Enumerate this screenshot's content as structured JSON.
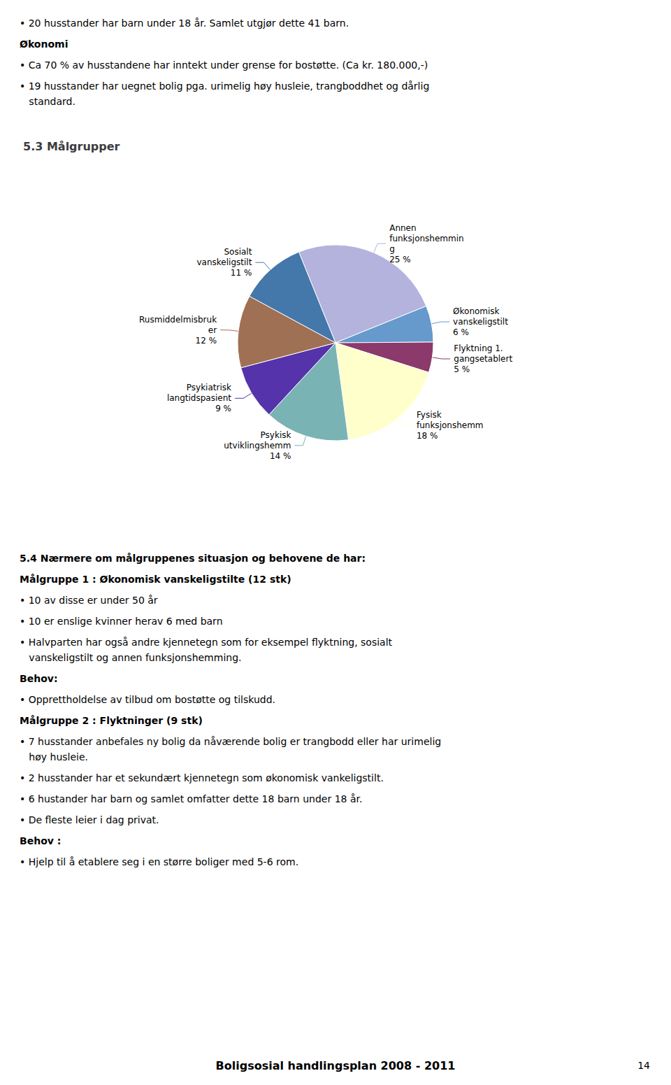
{
  "chart_data": {
    "type": "pie",
    "title": "5.3 Målgrupper",
    "categories": [
      "Annen\nfunksjonshemmin\ng",
      "Økonomisk\nvanskeligstilt",
      "Flyktning 1.\ngangsetablert",
      "Fysisk\nfunksjonshemm",
      "Psykisk\nutviklingshemm",
      "Psykiatrisk\nlangtidspasient",
      "Rusmiddelmisbruk\ner",
      "Sosialt\nvanskeligstilt"
    ],
    "values": [
      25,
      6,
      5,
      18,
      14,
      9,
      12,
      11
    ],
    "value_labels": [
      "25 %",
      "6 %",
      "5 %",
      "18 %",
      "14 %",
      "9 %",
      "12 %",
      "11 %"
    ],
    "colors": [
      "#b3b3dd",
      "#6699cc",
      "#8b3a6b",
      "#ffffcc",
      "#7ab3b3",
      "#5533aa",
      "#a07055",
      "#4477aa"
    ],
    "data_labels": true,
    "annotations": [
      "• 20 husstander har barn under 18 år. Samlet utgjør dette 41 barn.",
      "Økonomi",
      "• Ca 70 % av husstandene har inntekt under grense for bostøtte. (Ca kr. 180.000,-)",
      "• 19 husstander har uegnet bolig pga. urimelig høy husleie, trangboddhet og dårlig\n   standard.",
      "5.4 Nærmere om målgruppenes situasjon og behovene de har:",
      "Målgruppe 1 : Økonomisk vanskeligstilte (12 stk)",
      "• 10 av disse er under 50 år",
      "• 10 er enslige kvinner herav 6 med barn",
      "• Halvparten har også andre kjennetegn som for eksempel flyktning, sosialt\n   vanskeligstilt og annen funksjonshemming.",
      "Behov:",
      "• Opprettholdelse av tilbud om bostøtte og tilskudd.",
      "Målgruppe 2 : Flyktninger (9 stk)",
      "• 7 husstander anbefales ny bolig da nåværende bolig er trangbodd eller har urimelig\n   høy husleie.",
      "• 2 husstander har et sekundært kjennetegn som økonomisk vankeligstilt.",
      "• 6 hustander har barn og samlet omfatter dette 18 barn under 18 år.",
      "• De fleste leier i dag privat.",
      "Behov :",
      "• Hjelp til å etablere seg i en større boliger med 5-6 rom.",
      "Boligsosial handlingsplan 2008 - 2011",
      "14"
    ]
  }
}
